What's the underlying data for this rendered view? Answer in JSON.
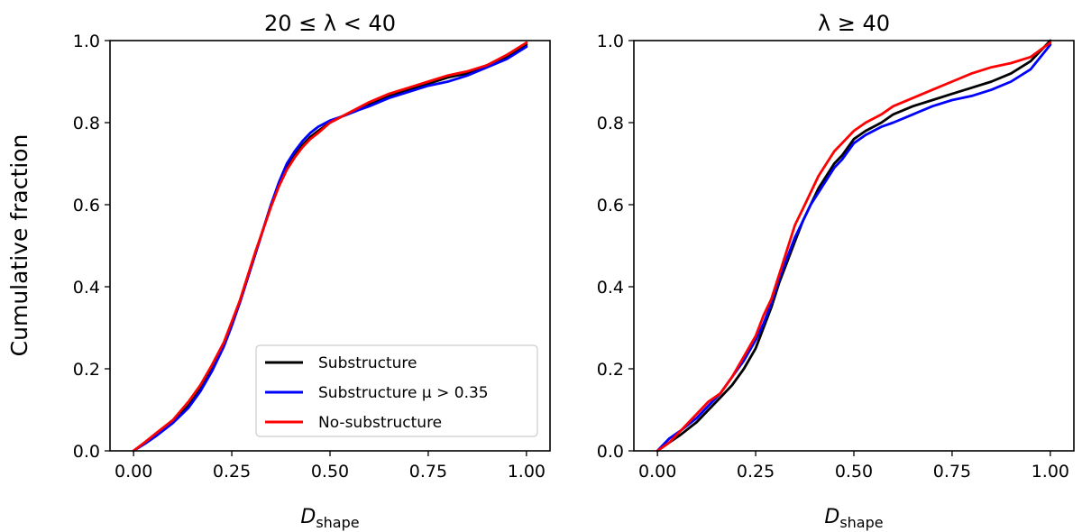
{
  "figure": {
    "ylabel": "Cumulative fraction"
  },
  "colors": {
    "Substructure": "#000000",
    "Substructure μ > 0.35": "#0000ff",
    "No-substructure": "#ff0000"
  },
  "chart_data": [
    {
      "type": "line",
      "title": "20 ≤ λ < 40",
      "xlabel": "D",
      "xlabel_subscript": "shape",
      "ylabel": "Cumulative fraction",
      "xlim": [
        -0.06,
        1.06
      ],
      "ylim": [
        0.0,
        1.0
      ],
      "xticks": [
        0.0,
        0.25,
        0.5,
        0.75,
        1.0
      ],
      "xtick_labels": [
        "0.00",
        "0.25",
        "0.50",
        "0.75",
        "1.00"
      ],
      "yticks": [
        0.0,
        0.2,
        0.4,
        0.6,
        0.8,
        1.0
      ],
      "ytick_labels": [
        "0.0",
        "0.2",
        "0.4",
        "0.6",
        "0.8",
        "1.0"
      ],
      "grid": false,
      "legend": {
        "placement": "lower-right",
        "entries": [
          "Substructure",
          "Substructure μ > 0.35",
          "No-substructure"
        ]
      },
      "series": [
        {
          "name": "Substructure",
          "x": [
            0,
            0.03,
            0.06,
            0.1,
            0.14,
            0.17,
            0.2,
            0.23,
            0.25,
            0.27,
            0.29,
            0.31,
            0.33,
            0.35,
            0.37,
            0.39,
            0.41,
            0.43,
            0.45,
            0.47,
            0.5,
            0.53,
            0.57,
            0.6,
            0.65,
            0.7,
            0.75,
            0.8,
            0.85,
            0.9,
            0.95,
            1.0
          ],
          "y": [
            0.0,
            0.02,
            0.04,
            0.07,
            0.11,
            0.15,
            0.2,
            0.26,
            0.31,
            0.36,
            0.42,
            0.48,
            0.54,
            0.6,
            0.65,
            0.69,
            0.72,
            0.745,
            0.765,
            0.78,
            0.8,
            0.815,
            0.83,
            0.845,
            0.865,
            0.88,
            0.895,
            0.91,
            0.92,
            0.94,
            0.96,
            0.99
          ]
        },
        {
          "name": "Substructure μ > 0.35",
          "x": [
            0,
            0.03,
            0.06,
            0.1,
            0.14,
            0.17,
            0.2,
            0.23,
            0.25,
            0.27,
            0.29,
            0.31,
            0.33,
            0.35,
            0.37,
            0.39,
            0.41,
            0.43,
            0.45,
            0.47,
            0.5,
            0.53,
            0.57,
            0.6,
            0.65,
            0.7,
            0.75,
            0.8,
            0.85,
            0.9,
            0.95,
            1.0
          ],
          "y": [
            0.0,
            0.018,
            0.038,
            0.068,
            0.105,
            0.145,
            0.195,
            0.255,
            0.305,
            0.36,
            0.42,
            0.48,
            0.54,
            0.6,
            0.655,
            0.7,
            0.73,
            0.755,
            0.775,
            0.79,
            0.805,
            0.815,
            0.83,
            0.84,
            0.86,
            0.875,
            0.89,
            0.9,
            0.915,
            0.935,
            0.955,
            0.985
          ]
        },
        {
          "name": "No-substructure",
          "x": [
            0,
            0.03,
            0.06,
            0.1,
            0.14,
            0.17,
            0.2,
            0.23,
            0.25,
            0.27,
            0.29,
            0.31,
            0.33,
            0.35,
            0.37,
            0.39,
            0.41,
            0.43,
            0.45,
            0.47,
            0.5,
            0.53,
            0.57,
            0.6,
            0.65,
            0.7,
            0.75,
            0.8,
            0.85,
            0.9,
            0.95,
            1.0
          ],
          "y": [
            0.0,
            0.022,
            0.045,
            0.075,
            0.12,
            0.16,
            0.21,
            0.265,
            0.315,
            0.365,
            0.425,
            0.485,
            0.54,
            0.595,
            0.645,
            0.685,
            0.715,
            0.74,
            0.76,
            0.775,
            0.8,
            0.815,
            0.835,
            0.85,
            0.87,
            0.885,
            0.9,
            0.915,
            0.925,
            0.94,
            0.965,
            0.995
          ]
        }
      ]
    },
    {
      "type": "line",
      "title": "λ ≥ 40",
      "xlabel": "D",
      "xlabel_subscript": "shape",
      "xlim": [
        -0.06,
        1.06
      ],
      "ylim": [
        0.0,
        1.0
      ],
      "xticks": [
        0.0,
        0.25,
        0.5,
        0.75,
        1.0
      ],
      "xtick_labels": [
        "0.00",
        "0.25",
        "0.50",
        "0.75",
        "1.00"
      ],
      "yticks": [
        0.0,
        0.2,
        0.4,
        0.6,
        0.8,
        1.0
      ],
      "ytick_labels": [
        "0.0",
        "0.2",
        "0.4",
        "0.6",
        "0.8",
        "1.0"
      ],
      "grid": false,
      "series": [
        {
          "name": "Substructure",
          "x": [
            0,
            0.03,
            0.06,
            0.1,
            0.13,
            0.16,
            0.19,
            0.22,
            0.25,
            0.27,
            0.29,
            0.31,
            0.33,
            0.35,
            0.37,
            0.39,
            0.41,
            0.43,
            0.45,
            0.47,
            0.5,
            0.53,
            0.57,
            0.6,
            0.65,
            0.7,
            0.75,
            0.8,
            0.85,
            0.9,
            0.95,
            1.0
          ],
          "y": [
            0.0,
            0.02,
            0.04,
            0.07,
            0.1,
            0.13,
            0.16,
            0.2,
            0.25,
            0.3,
            0.35,
            0.41,
            0.46,
            0.51,
            0.56,
            0.6,
            0.64,
            0.67,
            0.7,
            0.72,
            0.76,
            0.78,
            0.8,
            0.82,
            0.84,
            0.855,
            0.87,
            0.885,
            0.9,
            0.92,
            0.95,
            1.0
          ]
        },
        {
          "name": "Substructure μ > 0.35",
          "x": [
            0,
            0.03,
            0.06,
            0.1,
            0.13,
            0.16,
            0.19,
            0.22,
            0.25,
            0.27,
            0.29,
            0.31,
            0.33,
            0.35,
            0.37,
            0.39,
            0.41,
            0.43,
            0.45,
            0.47,
            0.5,
            0.53,
            0.57,
            0.6,
            0.65,
            0.7,
            0.75,
            0.8,
            0.85,
            0.9,
            0.95,
            1.0
          ],
          "y": [
            0.0,
            0.03,
            0.05,
            0.08,
            0.11,
            0.14,
            0.18,
            0.22,
            0.27,
            0.31,
            0.36,
            0.42,
            0.47,
            0.52,
            0.56,
            0.6,
            0.63,
            0.66,
            0.69,
            0.71,
            0.75,
            0.77,
            0.79,
            0.8,
            0.82,
            0.84,
            0.855,
            0.865,
            0.88,
            0.9,
            0.93,
            0.99
          ]
        },
        {
          "name": "No-substructure",
          "x": [
            0,
            0.03,
            0.06,
            0.1,
            0.13,
            0.16,
            0.19,
            0.22,
            0.25,
            0.27,
            0.29,
            0.31,
            0.33,
            0.35,
            0.37,
            0.39,
            0.41,
            0.43,
            0.45,
            0.47,
            0.5,
            0.53,
            0.57,
            0.6,
            0.65,
            0.7,
            0.75,
            0.8,
            0.85,
            0.9,
            0.95,
            1.0
          ],
          "y": [
            0.0,
            0.02,
            0.05,
            0.09,
            0.12,
            0.14,
            0.18,
            0.23,
            0.28,
            0.33,
            0.37,
            0.43,
            0.49,
            0.55,
            0.59,
            0.63,
            0.67,
            0.7,
            0.73,
            0.75,
            0.78,
            0.8,
            0.82,
            0.84,
            0.86,
            0.88,
            0.9,
            0.92,
            0.935,
            0.945,
            0.96,
            0.995
          ]
        }
      ]
    }
  ]
}
